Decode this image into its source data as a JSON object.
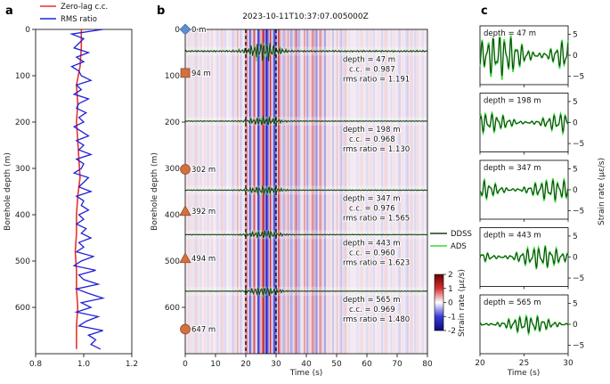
{
  "chart_data": [
    {
      "panel": "a",
      "type": "line",
      "ylabel": "Borehole depth (m)",
      "xlim": [
        0.8,
        1.2
      ],
      "ylim": [
        700,
        0
      ],
      "xticks": [
        "0.8",
        "1.0",
        "1.2"
      ],
      "yticks": [
        "0",
        "100",
        "200",
        "300",
        "400",
        "500",
        "600"
      ],
      "legend": {
        "position": "top",
        "entries": [
          "Zero-lag c.c.",
          "RMS ratio"
        ]
      },
      "series": [
        {
          "name": "Zero-lag c.c.",
          "color": "#e8322a",
          "depth": [
            0,
            40,
            80,
            120,
            160,
            200,
            240,
            280,
            320,
            360,
            400,
            440,
            480,
            520,
            560,
            600,
            640,
            690
          ],
          "values": [
            0.99,
            0.99,
            0.985,
            0.97,
            0.975,
            0.97,
            0.975,
            0.98,
            0.985,
            0.975,
            0.97,
            0.97,
            0.965,
            0.97,
            0.97,
            0.975,
            0.97,
            0.97
          ]
        },
        {
          "name": "RMS ratio",
          "color": "#2020d8",
          "depth": [
            0,
            10,
            20,
            30,
            40,
            50,
            60,
            70,
            80,
            90,
            100,
            110,
            120,
            130,
            140,
            150,
            160,
            170,
            180,
            190,
            200,
            210,
            220,
            230,
            240,
            250,
            260,
            270,
            280,
            290,
            300,
            310,
            320,
            330,
            340,
            350,
            360,
            370,
            380,
            390,
            400,
            410,
            420,
            430,
            440,
            450,
            460,
            470,
            480,
            490,
            500,
            510,
            520,
            530,
            540,
            550,
            560,
            570,
            580,
            590,
            600,
            610,
            620,
            630,
            640,
            650,
            660,
            670,
            680,
            690
          ],
          "values": [
            1.08,
            0.95,
            1.0,
            0.98,
            0.96,
            1.02,
            0.97,
            1.0,
            0.95,
            0.98,
            0.99,
            1.03,
            0.97,
            0.99,
            0.96,
            1.02,
            0.98,
            0.97,
            1.01,
            0.98,
            1.0,
            0.96,
            0.99,
            1.02,
            0.97,
            1.0,
            0.98,
            1.03,
            0.97,
            1.0,
            0.99,
            0.96,
            1.02,
            1.0,
            0.98,
            1.03,
            0.97,
            1.0,
            0.99,
            1.02,
            0.98,
            1.0,
            0.97,
            1.01,
            0.99,
            1.03,
            0.98,
            1.0,
            0.97,
            1.04,
            0.99,
            0.96,
            1.05,
            0.98,
            1.0,
            1.06,
            0.97,
            1.02,
            1.08,
            0.99,
            1.03,
            0.97,
            1.06,
            1.01,
            0.98,
            1.08,
            1.02,
            1.05,
            1.03,
            1.07
          ]
        }
      ]
    },
    {
      "panel": "b",
      "type": "heatmap",
      "title": "2023-10-11T10:37:07.005000Z",
      "xlabel": "Time (s)",
      "ylabel": "Borehole depth (m)",
      "xlim": [
        0,
        80
      ],
      "ylim": [
        700,
        0
      ],
      "xticks": [
        "0",
        "10",
        "20",
        "30",
        "40",
        "50",
        "60",
        "70",
        "80"
      ],
      "yticks": [
        "0",
        "100",
        "200",
        "300",
        "400",
        "500",
        "600"
      ],
      "window_lines_s": [
        20,
        30
      ],
      "colorbar": {
        "label": "Strain rate (με/s)",
        "min": -2,
        "max": 2,
        "ticks": [
          "-2",
          "-1",
          "0",
          "1",
          "2"
        ]
      },
      "legend": {
        "entries": [
          "DDSS",
          "ADS"
        ]
      },
      "markers": [
        {
          "label": "0 m",
          "depth": 0,
          "shape": "diamond",
          "color": "#5b8fd0"
        },
        {
          "label": "94 m",
          "depth": 94,
          "shape": "square",
          "color": "#d56f3e"
        },
        {
          "label": "302 m",
          "depth": 302,
          "shape": "circle",
          "color": "#d56f3e"
        },
        {
          "label": "392 m",
          "depth": 392,
          "shape": "triangle",
          "color": "#d56f3e"
        },
        {
          "label": "494 m",
          "depth": 494,
          "shape": "triangle",
          "color": "#d56f3e"
        },
        {
          "label": "647 m",
          "depth": 647,
          "shape": "circle",
          "color": "#d56f3e"
        }
      ],
      "traces": [
        {
          "depth": 47,
          "depth_label": "depth = 47 m",
          "cc_label": "c.c. = 0.987",
          "rms_label": "rms ratio = 1.191"
        },
        {
          "depth": 198,
          "depth_label": "depth = 198 m",
          "cc_label": "c.c. = 0.968",
          "rms_label": "rms ratio = 1.130"
        },
        {
          "depth": 347,
          "depth_label": "depth = 347 m",
          "cc_label": "c.c. = 0.976",
          "rms_label": "rms ratio = 1.565"
        },
        {
          "depth": 443,
          "depth_label": "depth = 443 m",
          "cc_label": "c.c. = 0.960",
          "rms_label": "rms ratio = 1.623"
        },
        {
          "depth": 565,
          "depth_label": "depth = 565 m",
          "cc_label": "c.c. = 0.969",
          "rms_label": "rms ratio = 1.480"
        }
      ]
    },
    {
      "panel": "c",
      "type": "line",
      "xlabel": "Time (s)",
      "ylabel": "Strain rate (με/s)",
      "xlim": [
        20,
        30
      ],
      "ylim": [
        -7,
        7
      ],
      "xticks": [
        "20",
        "25",
        "30"
      ],
      "yticks": [
        "5",
        "0",
        "−5"
      ],
      "series_names": [
        "DDSS",
        "ADS"
      ],
      "series_colors": [
        "#1a3d1a",
        "#33dd33"
      ],
      "subplots": [
        {
          "label": "depth = 47 m",
          "amplitude": 5
        },
        {
          "label": "depth = 198 m",
          "amplitude": 2.2
        },
        {
          "label": "depth = 347 m",
          "amplitude": 2.5
        },
        {
          "label": "depth = 443 m",
          "amplitude": 2.5
        },
        {
          "label": "depth = 565 m",
          "amplitude": 2.0
        }
      ]
    }
  ],
  "labels": {
    "a": "a",
    "b": "b",
    "c": "c"
  }
}
